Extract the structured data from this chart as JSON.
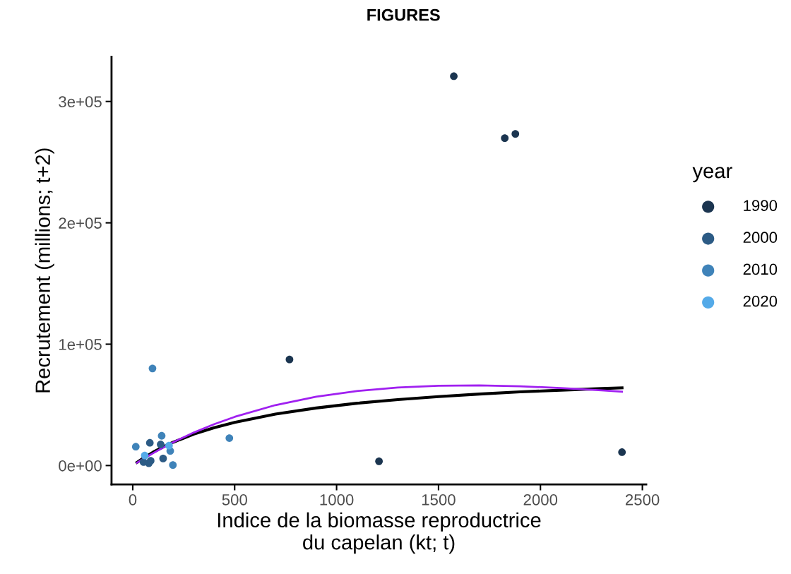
{
  "chart_data": {
    "type": "scatter",
    "title": "FIGURES",
    "xlabel": "Indice de la biomasse reproductrice\ndu capelan (kt; t)",
    "ylabel": "Recrutement (millions; t+2)",
    "legend_title": "year",
    "xlim": [
      -104,
      2519
    ],
    "ylim": [
      -15600,
      336800
    ],
    "xticks": [
      0,
      500,
      1000,
      1500,
      2000,
      2500
    ],
    "yticks": [
      {
        "value": 0,
        "label": "0e+00"
      },
      {
        "value": 100000,
        "label": "1e+05"
      },
      {
        "value": 200000,
        "label": "2e+05"
      },
      {
        "value": 300000,
        "label": "3e+05"
      }
    ],
    "grid": false,
    "legend": "right",
    "series": [
      {
        "name": "1990",
        "color": "#1b3550",
        "x": [
          1575,
          1825,
          1877,
          769,
          1208,
          2400
        ],
        "values": [
          320800,
          269800,
          273300,
          87400,
          3500,
          11000
        ]
      },
      {
        "name": "2000",
        "color": "#2c5b85",
        "x": [
          84,
          137,
          149,
          88,
          79,
          53
        ],
        "values": [
          18700,
          17400,
          5800,
          3900,
          1900,
          2900
        ]
      },
      {
        "name": "2010",
        "color": "#3f83b9",
        "x": [
          142,
          184,
          197,
          15,
          97,
          474
        ],
        "values": [
          24500,
          12000,
          400,
          15500,
          80000,
          22600
        ]
      },
      {
        "name": "2020",
        "color": "#54aae8",
        "x": [
          178,
          59
        ],
        "values": [
          16400,
          8300
        ]
      },
      {
        "type": "line",
        "color": "#000000",
        "x": [
          21,
          50,
          100,
          150,
          200,
          300,
          400,
          500,
          700,
          900,
          1100,
          1300,
          1500,
          1700,
          1900,
          2100,
          2300,
          2400
        ],
        "values": [
          2600,
          5900,
          11000,
          15400,
          19300,
          25900,
          31200,
          35600,
          42400,
          47400,
          51300,
          54300,
          56800,
          58900,
          60700,
          62100,
          63400,
          64000
        ]
      },
      {
        "type": "line",
        "color": "#a020f0",
        "x": [
          21,
          50,
          100,
          150,
          200,
          300,
          400,
          500,
          700,
          900,
          1100,
          1300,
          1500,
          1700,
          1900,
          2100,
          2300,
          2400
        ],
        "values": [
          2300,
          5300,
          10200,
          14900,
          19300,
          27200,
          34100,
          40100,
          49800,
          56700,
          61400,
          64300,
          65700,
          66000,
          65300,
          63900,
          62000,
          60900
        ]
      }
    ]
  }
}
